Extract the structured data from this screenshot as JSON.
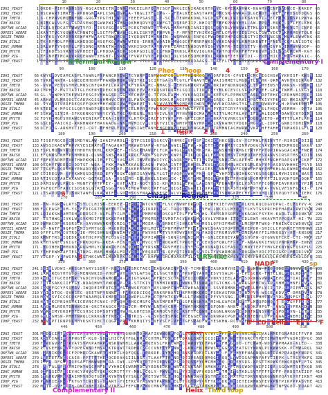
{
  "sequences": [
    "IDH1_YEAST",
    "IDH2_YEAST",
    "IDH_THET8",
    "IDH_BACSU",
    "Q6F7W6_ACIAD",
    "Q9FEE1_AERPE",
    "Q6SZ8_THEMA",
    "IDH_ECOLI",
    "IDHC_HUMAN",
    "IDH_MYCTU",
    "IDHP_PIG",
    "IDHP_YEAST"
  ],
  "blocks": [
    {
      "ruler": [
        "10",
        "20",
        "30",
        "40",
        "50",
        "60",
        "70",
        "80"
      ],
      "starts": [
        "1",
        "1",
        "1",
        "1",
        "1",
        "1",
        "1",
        "1",
        "1",
        "1",
        "1",
        "1"
      ],
      "ends": [
        "65",
        "65",
        "65",
        "65",
        "65",
        "62",
        "65",
        "65",
        "65",
        "65",
        "65",
        "65"
      ]
    },
    {
      "ruler": [
        "90",
        "100",
        "110",
        "120",
        "130",
        "140",
        "150",
        "160",
        "170"
      ],
      "starts": [
        "66",
        "66",
        "56",
        "49",
        "55",
        "45",
        "44",
        "44",
        "47",
        "52",
        "56",
        "58"
      ],
      "ends": [
        "132",
        "132",
        "117",
        "110",
        "116",
        "107",
        "106",
        "106",
        "109",
        "114",
        "118",
        "120"
      ]
    },
    {
      "ruler": [
        "180",
        "190",
        "200",
        "210",
        "220",
        "230",
        "240",
        "250",
        "260"
      ],
      "starts": [
        "133",
        "133",
        "118",
        "111",
        "117",
        "108",
        "107",
        "107",
        "110",
        "115",
        "119",
        "121"
      ],
      "ends": [
        "187",
        "187",
        "174",
        "166",
        "172",
        "163",
        "162",
        "162",
        "165",
        "170",
        "174",
        "176"
      ]
    },
    {
      "ruler": [
        "270",
        "280",
        "290",
        "300",
        "310",
        "320",
        "330",
        "340"
      ],
      "starts": [
        "188",
        "188",
        "175",
        "167",
        "173",
        "164",
        "163",
        "163",
        "166",
        "171",
        "175",
        "177"
      ],
      "ends": [
        "240",
        "240",
        "229",
        "221",
        "227",
        "218",
        "217",
        "217",
        "220",
        "225",
        "229",
        "231"
      ]
    },
    {
      "ruler": [
        "350",
        "360",
        "370",
        "380",
        "390",
        "400",
        "410",
        "420",
        "430"
      ],
      "starts": [
        "241",
        "241",
        "230",
        "222",
        "228",
        "219",
        "218",
        "218",
        "221",
        "226",
        "230",
        "232"
      ],
      "ends": [
        "300",
        "300",
        "289",
        "281",
        "287",
        "278",
        "277",
        "277",
        "280",
        "285",
        "289",
        "291"
      ]
    },
    {
      "ruler": [
        "440",
        "450",
        "460",
        "470",
        "480",
        "490",
        "500",
        "510"
      ],
      "starts": [
        "301",
        "301",
        "290",
        "282",
        "288",
        "279",
        "278",
        "278",
        "281",
        "286",
        "290",
        "292"
      ],
      "ends": [
        "360",
        "360",
        "338",
        "342",
        "341",
        "328",
        "345",
        "345",
        "414",
        "409",
        "413",
        "421"
      ]
    }
  ],
  "labels": {
    "n_terminal": "N-Terminal Region",
    "complementary_1": "Complementary I",
    "phos": "Phos",
    "loop": "loop",
    "helix_1": "Helix",
    "num_1": "1",
    "num_2": "2",
    "num_3": "3",
    "num_4": "4",
    "num_5": "5",
    "num_6": "6",
    "clasp": "Clasp",
    "region": "Region",
    "ars_like": "ARS-like",
    "num_8": "8",
    "nadp": "NADP",
    "sp": "sp",
    "num_9": "9",
    "a": "A",
    "b": "B",
    "cd": "CD",
    "helix_2": "Helix",
    "e": "E",
    "f": "F",
    "complementary_2": "Complementary II",
    "helix_3": "Helix",
    "third_loop": "Third loop"
  },
  "colors": {
    "conserved_dark": "#4a4fc4",
    "conserved_mid": "#8a8fe0",
    "conserved_light": "#c9cbf2",
    "olive_box": "#8a7a1a",
    "purple_box": "#a020c0",
    "green_box": "#2e9b2e",
    "blue_box": "#1a2a8a",
    "red_box": "#d62020",
    "orange_text": "#f08a00",
    "gold_box": "#c9a000",
    "magenta_box": "#d020d0",
    "red_text": "#d62020",
    "green_text": "#1d8a1d",
    "blue_text": "#1a1aa0"
  }
}
